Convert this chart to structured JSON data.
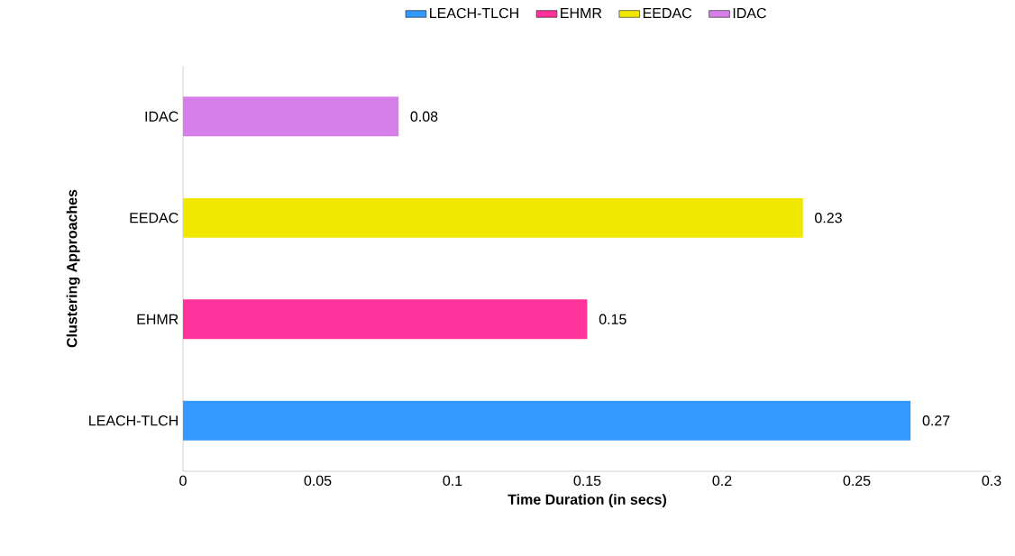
{
  "chart_data": {
    "type": "bar",
    "orientation": "horizontal",
    "xlabel": "Time Duration (in secs)",
    "ylabel": "Clustering Approaches",
    "categories": [
      "IDAC",
      "EEDAC",
      "EHMR",
      "LEACH-TLCH"
    ],
    "series": [
      {
        "name": "LEACH-TLCH",
        "color": "#3399ff",
        "values": [
          null,
          null,
          null,
          0.27
        ]
      },
      {
        "name": "EHMR",
        "color": "#ff3399",
        "values": [
          null,
          null,
          0.15,
          null
        ]
      },
      {
        "name": "EEDAC",
        "color": "#f0e800",
        "values": [
          null,
          0.23,
          null,
          null
        ]
      },
      {
        "name": "IDAC",
        "color": "#d77fe8",
        "values": [
          0.08,
          null,
          null,
          null
        ]
      }
    ],
    "xlim": [
      0,
      0.3
    ],
    "xticks": [
      0,
      0.05,
      0.1,
      0.15,
      0.2,
      0.25,
      0.3
    ],
    "data_labels": true,
    "legend": "top"
  }
}
